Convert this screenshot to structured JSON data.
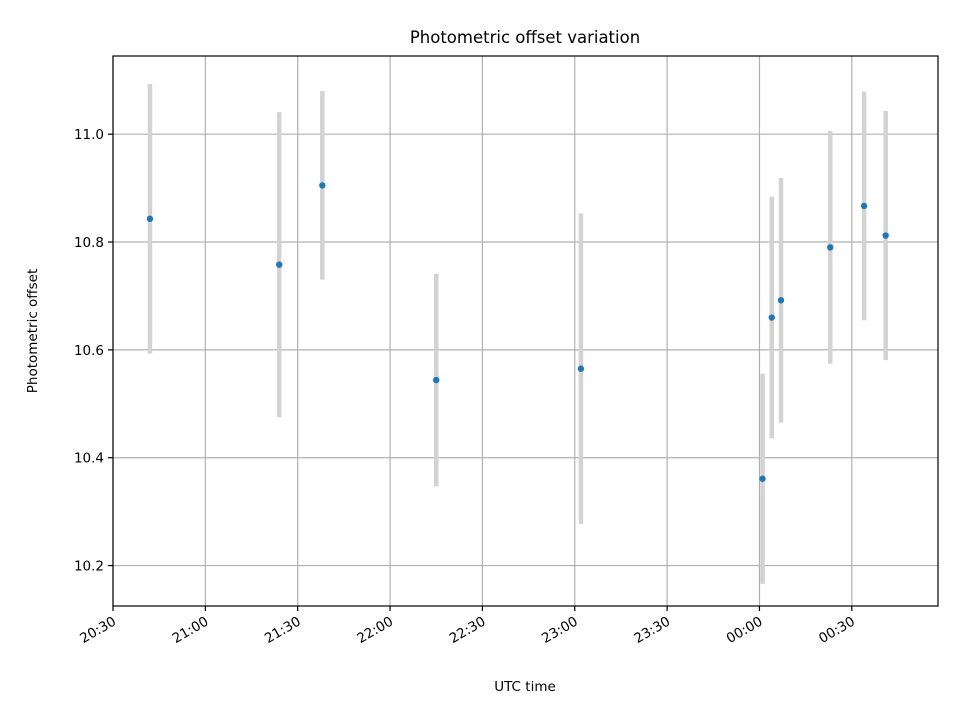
{
  "chart_data": {
    "type": "scatter",
    "title": "Photometric offset variation",
    "xlabel": "UTC time",
    "ylabel": "Photometric offset",
    "grid": true,
    "marker_color": "#1f77b4",
    "errorbar_color": "#d3d3d3",
    "x_range": [
      "20:30",
      "00:58"
    ],
    "ylim": [
      10.125,
      11.145
    ],
    "x_ticks": [
      "20:30",
      "21:00",
      "21:30",
      "22:00",
      "22:30",
      "23:00",
      "23:30",
      "00:00",
      "00:30"
    ],
    "y_ticks": [
      "10.2",
      "10.4",
      "10.6",
      "10.8",
      "11.0"
    ],
    "points": [
      {
        "time": "20:42",
        "value": 10.843,
        "low": 10.593,
        "high": 11.093
      },
      {
        "time": "21:24",
        "value": 10.758,
        "low": 10.475,
        "high": 11.041
      },
      {
        "time": "21:38",
        "value": 10.905,
        "low": 10.73,
        "high": 11.08
      },
      {
        "time": "22:15",
        "value": 10.544,
        "low": 10.347,
        "high": 10.741
      },
      {
        "time": "23:02",
        "value": 10.565,
        "low": 10.277,
        "high": 10.853
      },
      {
        "time": "00:01",
        "value": 10.361,
        "low": 10.166,
        "high": 10.556
      },
      {
        "time": "00:04",
        "value": 10.66,
        "low": 10.436,
        "high": 10.884
      },
      {
        "time": "00:07",
        "value": 10.692,
        "low": 10.465,
        "high": 10.919
      },
      {
        "time": "00:23",
        "value": 10.79,
        "low": 10.574,
        "high": 11.006
      },
      {
        "time": "00:34",
        "value": 10.867,
        "low": 10.655,
        "high": 11.079
      },
      {
        "time": "00:41",
        "value": 10.812,
        "low": 10.581,
        "high": 11.043
      }
    ]
  }
}
